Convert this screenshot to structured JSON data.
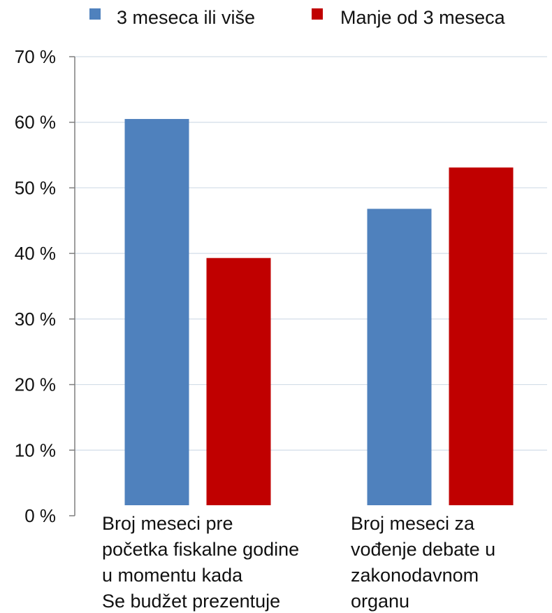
{
  "chart_data": {
    "type": "bar",
    "categories": [
      [
        "Broj meseci pre",
        "početka fiskalne godine",
        "u momentu kada",
        "Se budžet prezentuje"
      ],
      [
        "Broj meseci za",
        "vođenje debate u",
        "zakonodavnom",
        "organu"
      ]
    ],
    "series": [
      {
        "name": "3 meseca ili više",
        "values": [
          60.5,
          46.8
        ],
        "color": "#4f81bd"
      },
      {
        "name": "Manje od 3 meseca",
        "values": [
          39.3,
          53.1
        ],
        "color": "#c00000"
      }
    ],
    "ylim": [
      0,
      70
    ],
    "yticks": [
      {
        "value": 0,
        "label": "0 %"
      },
      {
        "value": 10,
        "label": "10 %"
      },
      {
        "value": 20,
        "label": "20 %"
      },
      {
        "value": 30,
        "label": "30 %"
      },
      {
        "value": 40,
        "label": "40 %"
      },
      {
        "value": 50,
        "label": "50 %"
      },
      {
        "value": 60,
        "label": "60 %"
      },
      {
        "value": 70,
        "label": "70 %"
      }
    ],
    "grid": true,
    "legend_position": "top",
    "title": "",
    "xlabel": "",
    "ylabel": ""
  }
}
